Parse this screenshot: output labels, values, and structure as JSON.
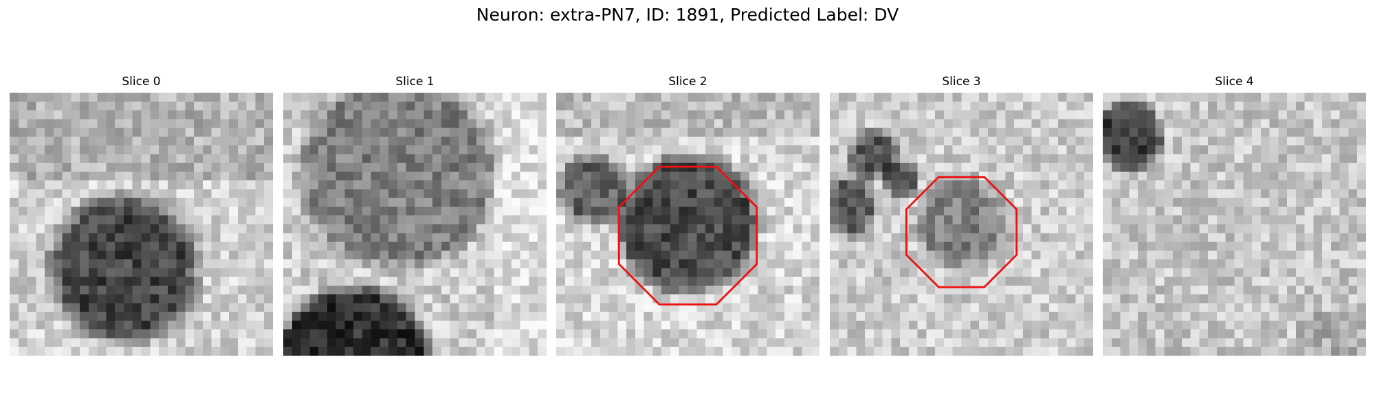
{
  "figure": {
    "title": "Neuron: extra-PN7, ID: 1891, Predicted Label: DV"
  },
  "panels": [
    {
      "title": "Slice 0",
      "has_outline": false
    },
    {
      "title": "Slice 1",
      "has_outline": false
    },
    {
      "title": "Slice 2",
      "has_outline": true
    },
    {
      "title": "Slice 3",
      "has_outline": true
    },
    {
      "title": "Slice 4",
      "has_outline": false
    }
  ],
  "colors": {
    "outline": "#ee1111",
    "background": "#ffffff",
    "colormap": "grayscale"
  }
}
